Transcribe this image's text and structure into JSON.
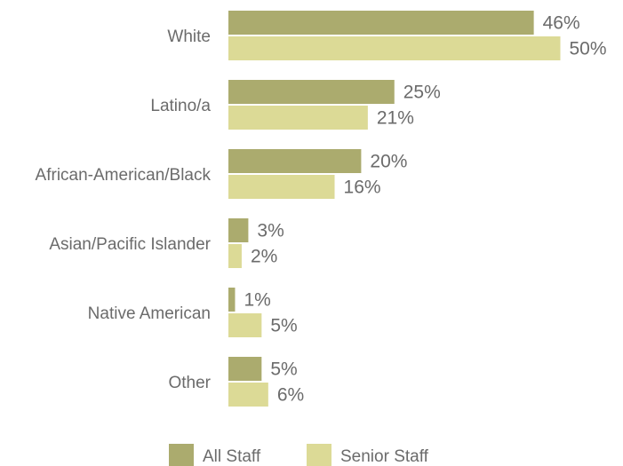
{
  "chart_data": {
    "type": "bar",
    "orientation": "horizontal",
    "categories": [
      "White",
      "Latino/a",
      "African-American/Black",
      "Asian/Pacific Islander",
      "Native American",
      "Other"
    ],
    "series": [
      {
        "name": "All Staff",
        "values": [
          46,
          25,
          20,
          3,
          1,
          5
        ],
        "color": "#abab6e"
      },
      {
        "name": "Senior Staff",
        "values": [
          50,
          21,
          16,
          2,
          5,
          6
        ],
        "color": "#dcda96"
      }
    ],
    "value_suffix": "%",
    "xlim": [
      0,
      50
    ],
    "grid": false,
    "legend_position": "bottom"
  }
}
